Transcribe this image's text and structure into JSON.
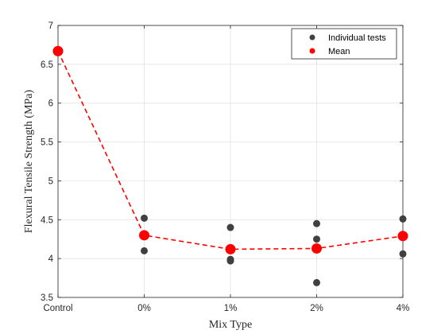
{
  "chart_data": {
    "type": "scatter",
    "categories": [
      "Control",
      "0%",
      "1%",
      "2%",
      "4%"
    ],
    "xlabel": "Mix Type",
    "ylabel": "Flexural Tensile Strength (MPa)",
    "ylim": [
      3.5,
      7
    ],
    "yticks": [
      3.5,
      4,
      4.5,
      5,
      5.5,
      6,
      6.5,
      7
    ],
    "grid": true,
    "legend_position": "top-right",
    "series": [
      {
        "name": "Individual tests",
        "style": "markers",
        "color": "#404040",
        "points": [
          {
            "x": "Control",
            "y": 6.68
          },
          {
            "x": "Control",
            "y": 6.65
          },
          {
            "x": "0%",
            "y": 4.52
          },
          {
            "x": "0%",
            "y": 4.1
          },
          {
            "x": "1%",
            "y": 4.4
          },
          {
            "x": "1%",
            "y": 3.99
          },
          {
            "x": "1%",
            "y": 3.97
          },
          {
            "x": "2%",
            "y": 4.45
          },
          {
            "x": "2%",
            "y": 4.25
          },
          {
            "x": "2%",
            "y": 3.69
          },
          {
            "x": "4%",
            "y": 4.51
          },
          {
            "x": "4%",
            "y": 4.06
          }
        ]
      },
      {
        "name": "Mean",
        "style": "markers-dashed-line",
        "color": "#ff0000",
        "points": [
          {
            "x": "Control",
            "y": 6.67
          },
          {
            "x": "0%",
            "y": 4.3
          },
          {
            "x": "1%",
            "y": 4.12
          },
          {
            "x": "2%",
            "y": 4.13
          },
          {
            "x": "4%",
            "y": 4.29
          }
        ]
      }
    ]
  }
}
